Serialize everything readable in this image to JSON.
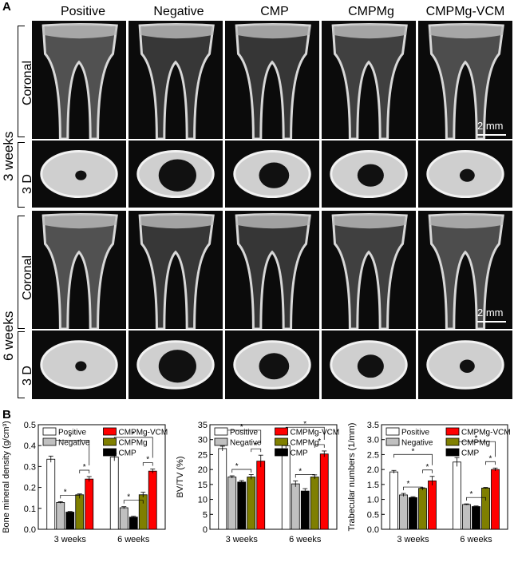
{
  "panel_a": {
    "letter": "A",
    "columns": [
      "Positive",
      "Negative",
      "CMP",
      "CMPMg",
      "CMPMg-VCM"
    ],
    "groups": [
      {
        "label": "3 weeks",
        "views": [
          "Coronal",
          "3 D"
        ]
      },
      {
        "label": "6 weeks",
        "views": [
          "Coronal",
          "3 D"
        ]
      }
    ],
    "scale_bars": [
      "2 mm",
      "2 mm"
    ]
  },
  "panel_b": {
    "letter": "B"
  },
  "chart_data": [
    {
      "type": "bar",
      "categories": [
        "3 weeks",
        "6 weeks"
      ],
      "series": [
        {
          "name": "Positive",
          "values": [
            0.335,
            0.345
          ],
          "errors": [
            0.015,
            0.018
          ],
          "color": "#ffffff"
        },
        {
          "name": "Negative",
          "values": [
            0.128,
            0.103
          ],
          "errors": [
            0.004,
            0.005
          ],
          "color": "#c0c0c0"
        },
        {
          "name": "CMP",
          "values": [
            0.082,
            0.058
          ],
          "errors": [
            0.003,
            0.004
          ],
          "color": "#000000"
        },
        {
          "name": "CMPMg",
          "values": [
            0.165,
            0.165
          ],
          "errors": [
            0.004,
            0.012
          ],
          "color": "#7f7f00"
        },
        {
          "name": "CMPMg-VCM",
          "values": [
            0.24,
            0.278
          ],
          "errors": [
            0.012,
            0.01
          ],
          "color": "#ff0000"
        }
      ],
      "xlabel": "",
      "ylabel": "Bone mineral density (g/cm³)",
      "ylim": [
        0,
        0.5
      ],
      "yticks": [
        "0.0",
        "0.1",
        "0.2",
        "0.3",
        "0.4",
        "0.5"
      ],
      "legend_position": "top",
      "significance_marker": "*"
    },
    {
      "type": "bar",
      "categories": [
        "3 weeks",
        "6 weeks"
      ],
      "series": [
        {
          "name": "Positive",
          "values": [
            27,
            28
          ],
          "errors": [
            0.8,
            0.8
          ],
          "color": "#ffffff"
        },
        {
          "name": "Negative",
          "values": [
            17.5,
            15.2
          ],
          "errors": [
            0.4,
            1.0
          ],
          "color": "#c0c0c0"
        },
        {
          "name": "CMP",
          "values": [
            15.8,
            12.8
          ],
          "errors": [
            0.5,
            0.8
          ],
          "color": "#000000"
        },
        {
          "name": "CMPMg",
          "values": [
            17.5,
            17.5
          ],
          "errors": [
            0.8,
            0.7
          ],
          "color": "#7f7f00"
        },
        {
          "name": "CMPMg-VCM",
          "values": [
            22.8,
            25.2
          ],
          "errors": [
            2.0,
            1.0
          ],
          "color": "#ff0000"
        }
      ],
      "xlabel": "",
      "ylabel": "BV/TV (%)",
      "ylim": [
        0,
        35
      ],
      "yticks": [
        "0",
        "5",
        "10",
        "15",
        "20",
        "25",
        "30",
        "35"
      ],
      "legend_position": "top",
      "significance_marker": "*"
    },
    {
      "type": "bar",
      "categories": [
        "3 weeks",
        "6 weeks"
      ],
      "series": [
        {
          "name": "Positive",
          "values": [
            1.92,
            2.25
          ],
          "errors": [
            0.05,
            0.15
          ],
          "color": "#ffffff"
        },
        {
          "name": "Negative",
          "values": [
            1.15,
            0.83
          ],
          "errors": [
            0.05,
            0.02
          ],
          "color": "#c0c0c0"
        },
        {
          "name": "CMP",
          "values": [
            1.06,
            0.76
          ],
          "errors": [
            0.03,
            0.02
          ],
          "color": "#000000"
        },
        {
          "name": "CMPMg",
          "values": [
            1.37,
            1.38
          ],
          "errors": [
            0.02,
            0.02
          ],
          "color": "#7f7f00"
        },
        {
          "name": "CMPMg-VCM",
          "values": [
            1.62,
            2.0
          ],
          "errors": [
            0.15,
            0.05
          ],
          "color": "#ff0000"
        }
      ],
      "xlabel": "",
      "ylabel": "Trabecular numbers (1/mm)",
      "ylim": [
        0,
        3.5
      ],
      "yticks": [
        "0.0",
        "0.5",
        "1.0",
        "1.5",
        "2.0",
        "2.5",
        "3.0",
        "3.5"
      ],
      "legend_position": "top",
      "significance_marker": "*"
    }
  ]
}
